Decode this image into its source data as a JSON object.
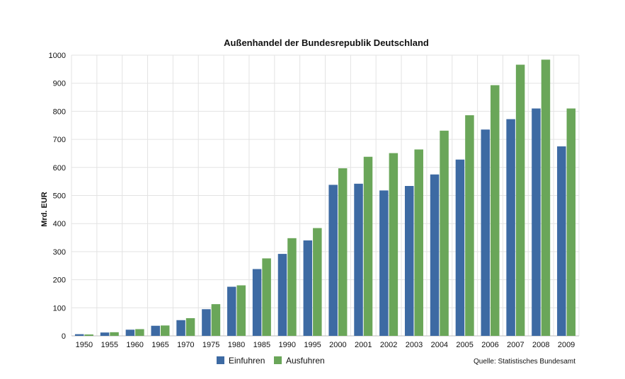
{
  "chart_data": {
    "type": "bar",
    "title": "Außenhandel der Bundesrepublik Deutschland",
    "ylabel": "Mrd. EUR",
    "xlabel": "",
    "ylim": [
      0,
      1000
    ],
    "yticks": [
      0,
      100,
      200,
      300,
      400,
      500,
      600,
      700,
      800,
      900,
      1000
    ],
    "grid": true,
    "legend_position": "bottom",
    "categories": [
      "1950",
      "1955",
      "1960",
      "1965",
      "1970",
      "1975",
      "1980",
      "1985",
      "1990",
      "1995",
      "2000",
      "2001",
      "2002",
      "2003",
      "2004",
      "2005",
      "2006",
      "2007",
      "2008",
      "2009"
    ],
    "series": [
      {
        "name": "Einfuhren",
        "color": "#3d6aa3",
        "values": [
          6,
          12,
          22,
          36,
          56,
          95,
          175,
          238,
          292,
          340,
          538,
          542,
          518,
          534,
          575,
          628,
          735,
          772,
          810,
          675
        ]
      },
      {
        "name": "Ausfuhren",
        "color": "#6aa659",
        "values": [
          5,
          13,
          24,
          37,
          63,
          113,
          180,
          276,
          348,
          384,
          597,
          638,
          651,
          664,
          731,
          786,
          893,
          966,
          984,
          810
        ]
      }
    ],
    "source": "Quelle: Statistisches Bundesamt"
  }
}
